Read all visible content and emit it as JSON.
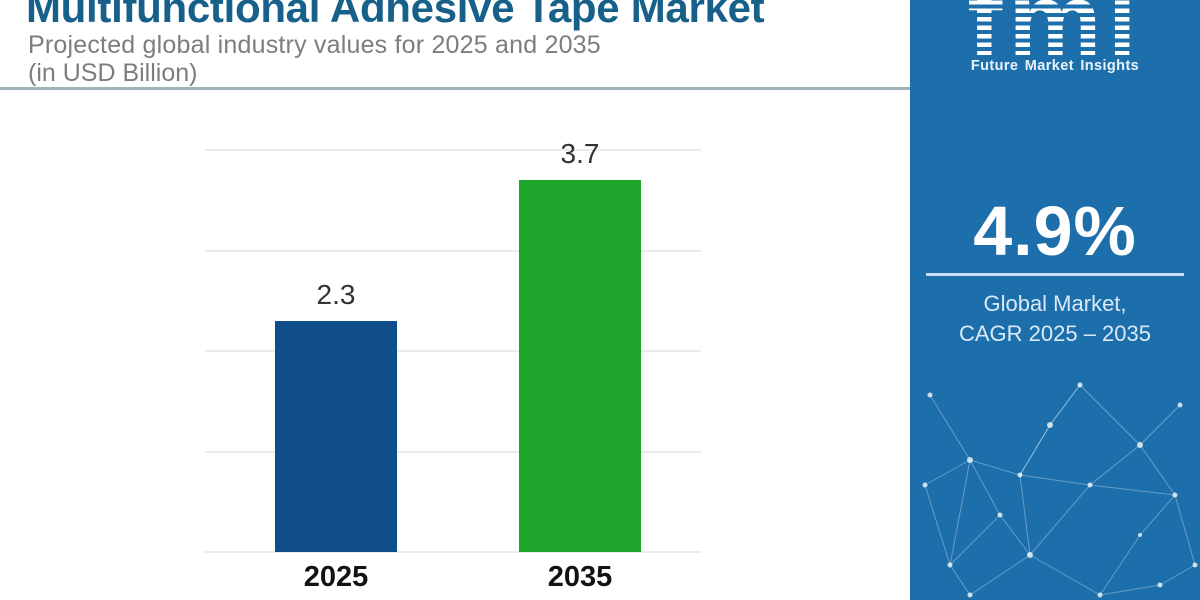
{
  "header": {
    "title": "Multifunctional Adhesive Tape Market",
    "subtitle_line1": "Projected global industry values for 2025 and 2035",
    "subtitle_line2": "(in USD Billion)"
  },
  "chart_data": {
    "type": "bar",
    "categories": [
      "2025",
      "2035"
    ],
    "values": [
      2.3,
      3.7
    ],
    "value_labels": [
      "2.3",
      "3.7"
    ],
    "title": "Multifunctional Adhesive Tape Market",
    "subtitle": "Projected global industry values for 2025 and 2035 (in USD Billion)",
    "xlabel": "",
    "ylabel": "",
    "ylim": [
      0,
      4
    ],
    "grid": "horizontal, 5 lines, no y tick labels",
    "legend": "none",
    "bar_colors": [
      "#0f4e8a",
      "#1fa72d"
    ]
  },
  "sidebar": {
    "logo_text": "fmi",
    "logo_subtext": "Future Market Insights",
    "cagr_value": "4.9%",
    "cagr_label_line1": "Global Market,",
    "cagr_label_line2": "CAGR 2025 – 2035"
  },
  "colors": {
    "title_text": "#176089",
    "subtitle_text": "#7d7d7d",
    "divider": "#9fb5ba",
    "bar_2025": "#0f4e8a",
    "bar_2035": "#1fa72d",
    "sidebar_background": "#1d6fab",
    "gridline": "#ebebeb",
    "axis_label_text": "#131313",
    "value_label_text": "#333333",
    "cagr_text": "#ffffff"
  }
}
